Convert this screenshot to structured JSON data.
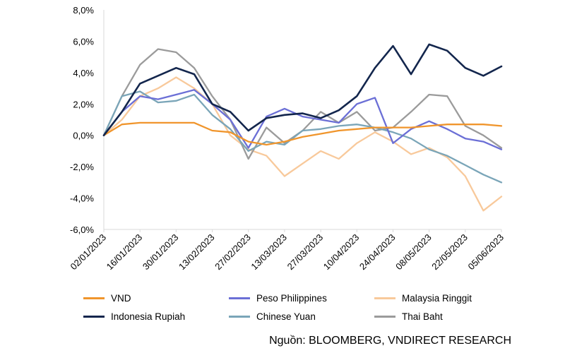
{
  "chart_data": {
    "type": "line",
    "title": "",
    "xlabel": "",
    "ylabel": "",
    "ylim": [
      -6,
      8
    ],
    "yticks": [
      -6,
      -4,
      -2,
      0,
      2,
      4,
      6,
      8
    ],
    "ytick_labels": [
      "-6,0%",
      "-4,0%",
      "-2,0%",
      "0,0%",
      "2,0%",
      "4,0%",
      "6,0%",
      "8,0%"
    ],
    "x_dates": [
      "2023-01-02",
      "2023-01-09",
      "2023-01-16",
      "2023-01-23",
      "2023-01-30",
      "2023-02-06",
      "2023-02-13",
      "2023-02-20",
      "2023-02-27",
      "2023-03-06",
      "2023-03-13",
      "2023-03-20",
      "2023-03-27",
      "2023-04-03",
      "2023-04-10",
      "2023-04-17",
      "2023-04-24",
      "2023-05-01",
      "2023-05-08",
      "2023-05-15",
      "2023-05-22",
      "2023-05-29",
      "2023-06-05"
    ],
    "xticks": [
      "02/01/2023",
      "16/01/2023",
      "30/01/2023",
      "13/02/2023",
      "27/02/2023",
      "13/03/2023",
      "27/03/2023",
      "10/04/2023",
      "24/04/2023",
      "08/05/2023",
      "22/05/2023",
      "05/06/2023"
    ],
    "grid": false,
    "legend_position": "bottom",
    "series": [
      {
        "name": "VND",
        "color": "#f0952c",
        "values": [
          0.0,
          0.7,
          0.8,
          0.8,
          0.8,
          0.8,
          0.3,
          0.2,
          -0.4,
          -0.6,
          -0.4,
          -0.1,
          0.1,
          0.3,
          0.4,
          0.5,
          0.5,
          0.5,
          0.6,
          0.7,
          0.7,
          0.7,
          0.6
        ]
      },
      {
        "name": "Peso Philippines",
        "color": "#6b6fd6",
        "values": [
          0.0,
          1.5,
          2.5,
          2.3,
          2.6,
          2.9,
          2.0,
          1.0,
          -0.8,
          1.2,
          1.7,
          1.2,
          1.0,
          0.8,
          2.0,
          2.4,
          -0.5,
          0.4,
          0.9,
          0.4,
          -0.2,
          -0.4,
          -0.9
        ]
      },
      {
        "name": "Malaysia Ringgit",
        "color": "#f8c99b",
        "values": [
          0.0,
          1.0,
          2.5,
          3.0,
          3.7,
          3.0,
          2.0,
          0.0,
          -0.9,
          -1.3,
          -2.6,
          -1.8,
          -1.0,
          -1.5,
          -0.5,
          0.2,
          -0.4,
          -1.2,
          -0.8,
          -1.4,
          -2.6,
          -4.8,
          -3.9
        ]
      },
      {
        "name": "Indonesia Rupiah",
        "color": "#13264d",
        "values": [
          0.0,
          1.5,
          3.3,
          3.8,
          4.3,
          3.9,
          2.0,
          1.5,
          0.3,
          1.1,
          1.3,
          1.4,
          1.1,
          1.6,
          2.5,
          4.3,
          5.7,
          3.9,
          5.8,
          5.4,
          4.3,
          3.8,
          4.4
        ]
      },
      {
        "name": "Chinese Yuan",
        "color": "#7aa5b8",
        "values": [
          0.0,
          2.5,
          2.8,
          2.1,
          2.2,
          2.6,
          1.3,
          0.4,
          -1.0,
          -0.4,
          -0.6,
          0.3,
          0.4,
          0.6,
          0.7,
          0.5,
          0.2,
          -0.2,
          -0.9,
          -1.3,
          -1.9,
          -2.5,
          -3.0
        ]
      },
      {
        "name": "Thai Baht",
        "color": "#9b9b9b",
        "values": [
          0.0,
          2.5,
          4.5,
          5.5,
          5.3,
          4.3,
          2.5,
          1.0,
          -1.5,
          0.5,
          -0.5,
          0.3,
          1.5,
          0.8,
          1.5,
          0.3,
          0.5,
          1.5,
          2.6,
          2.5,
          0.6,
          0.0,
          -0.8
        ]
      }
    ]
  },
  "source_text": "Nguồn: BLOOMBERG, VNDIRECT RESEARCH"
}
